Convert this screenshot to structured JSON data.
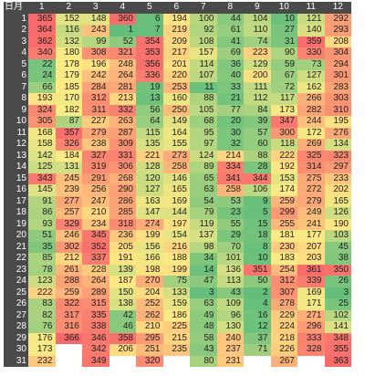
{
  "chart_data": {
    "type": "heatmap",
    "corner_label": "日月",
    "months": [
      "1",
      "2",
      "3",
      "4",
      "5",
      "6",
      "7",
      "8",
      "9",
      "10",
      "11",
      "12"
    ],
    "days": [
      "1",
      "2",
      "3",
      "4",
      "5",
      "6",
      "7",
      "8",
      "9",
      "10",
      "11",
      "12",
      "13",
      "14",
      "15",
      "16",
      "17",
      "18",
      "19",
      "20",
      "21",
      "22",
      "23",
      "24",
      "25",
      "26",
      "27",
      "28",
      "29",
      "30",
      "31"
    ],
    "value_range": [
      1,
      366
    ],
    "color_scale": {
      "low": "#63be7b",
      "mid": "#ffeb84",
      "high": "#f8696b"
    },
    "values": [
      [
        365,
        152,
        148,
        360,
        6,
        194,
        100,
        44,
        104,
        10,
        121,
        292
      ],
      [
        364,
        116,
        243,
        1,
        7,
        219,
        92,
        61,
        110,
        27,
        140,
        293
      ],
      [
        362,
        132,
        99,
        52,
        354,
        209,
        108,
        41,
        74,
        31,
        359,
        208
      ],
      [
        340,
        180,
        308,
        321,
        353,
        217,
        157,
        69,
        223,
        90,
        330,
        304
      ],
      [
        22,
        178,
        196,
        248,
        356,
        201,
        114,
        36,
        129,
        59,
        73,
        294
      ],
      [
        24,
        179,
        242,
        264,
        336,
        220,
        107,
        40,
        200,
        67,
        127,
        301
      ],
      [
        66,
        185,
        284,
        281,
        19,
        253,
        11,
        33,
        111,
        72,
        162,
        283
      ],
      [
        193,
        170,
        312,
        213,
        13,
        160,
        88,
        21,
        112,
        117,
        266,
        303
      ],
      [
        324,
        182,
        311,
        332,
        56,
        250,
        105,
        77,
        84,
        173,
        282,
        310
      ],
      [
        305,
        87,
        227,
        263,
        64,
        149,
        68,
        20,
        39,
        347,
        244,
        195
      ],
      [
        168,
        357,
        279,
        287,
        115,
        164,
        95,
        30,
        57,
        300,
        172,
        276
      ],
      [
        158,
        326,
        238,
        309,
        135,
        155,
        97,
        32,
        60,
        118,
        269,
        134
      ],
      [
        142,
        184,
        327,
        331,
        221,
        273,
        124,
        214,
        88,
        222,
        325,
        323
      ],
      [
        125,
        131,
        319,
        306,
        128,
        258,
        89,
        334,
        28,
        192,
        314,
        297
      ],
      [
        343,
        245,
        291,
        268,
        120,
        146,
        65,
        341,
        344,
        153,
        275,
        233
      ],
      [
        145,
        239,
        256,
        290,
        127,
        165,
        63,
        258,
        106,
        174,
        272,
        202
      ],
      [
        91,
        277,
        247,
        286,
        163,
        169,
        54,
        53,
        9,
        259,
        279,
        165
      ],
      [
        86,
        257,
        210,
        285,
        147,
        144,
        79,
        23,
        5,
        299,
        249,
        126
      ],
      [
        93,
        329,
        234,
        318,
        274,
        197,
        119,
        55,
        15,
        255,
        241,
        190
      ],
      [
        51,
        246,
        345,
        236,
        199,
        154,
        137,
        29,
        18,
        181,
        177,
        103
      ],
      [
        35,
        302,
        352,
        205,
        156,
        216,
        98,
        70,
        8,
        230,
        207,
        45
      ],
      [
        85,
        212,
        337,
        191,
        166,
        188,
        34,
        101,
        10,
        183,
        203,
        38
      ],
      [
        78,
        261,
        228,
        139,
        198,
        199,
        14,
        136,
        351,
        254,
        361,
        350
      ],
      [
        123,
        288,
        264,
        187,
        270,
        75,
        47,
        113,
        50,
        312,
        339,
        26
      ],
      [
        222,
        259,
        289,
        150,
        204,
        133,
        3,
        43,
        2,
        307,
        169,
        3
      ],
      [
        83,
        322,
        315,
        138,
        252,
        159,
        63,
        109,
        4,
        278,
        171,
        25
      ],
      [
        82,
        317,
        335,
        42,
        262,
        186,
        49,
        96,
        16,
        229,
        271,
        102
      ],
      [
        76,
        316,
        338,
        46,
        210,
        225,
        48,
        130,
        12,
        224,
        296,
        141
      ],
      [
        176,
        366,
        346,
        358,
        295,
        215,
        58,
        240,
        37,
        218,
        333,
        348
      ],
      [
        173,
        null,
        342,
        206,
        251,
        235,
        43,
        237,
        71,
        226,
        328,
        355
      ],
      [
        232,
        null,
        349,
        null,
        320,
        null,
        80,
        231,
        null,
        267,
        null,
        363
      ]
    ]
  }
}
